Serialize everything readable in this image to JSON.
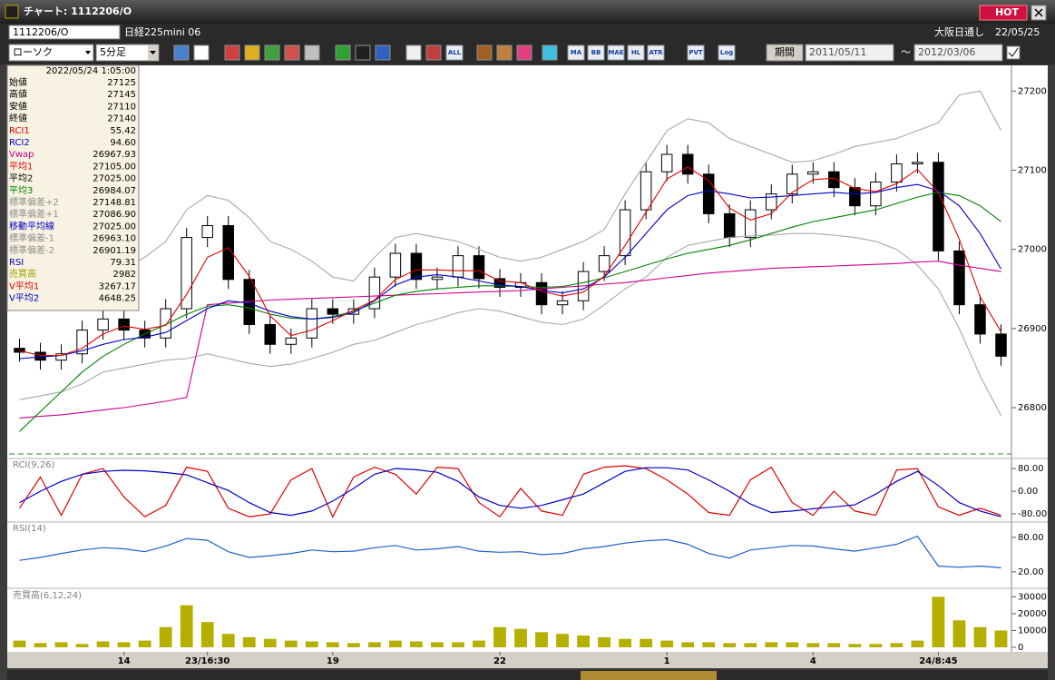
{
  "window": {
    "title": "チャート: 1112206/O",
    "hot": "HOT"
  },
  "header": {
    "symbol": "1112206/O",
    "name": "日経225mini 06",
    "exchange": "大阪日通し",
    "date": "22/05/25"
  },
  "toolbar": {
    "chart_type": "ローソク",
    "interval": "5分足",
    "icons": [
      "ALL",
      "MA",
      "BB",
      "MAE",
      "HL",
      "ATR",
      "PVT",
      "Log"
    ],
    "period_button": "期間",
    "date_from": "2011/05/11",
    "separator": "～",
    "date_to": "2012/03/06"
  },
  "info_panel": {
    "datetime": "2022/05/24 1:05:00",
    "rows": [
      {
        "label": "始値",
        "value": "27125",
        "color": "#000000"
      },
      {
        "label": "高値",
        "value": "27145",
        "color": "#000000"
      },
      {
        "label": "安値",
        "value": "27110",
        "color": "#000000"
      },
      {
        "label": "終値",
        "value": "27140",
        "color": "#000000"
      },
      {
        "label": "RCI1",
        "value": "55.42",
        "color": "#e00000"
      },
      {
        "label": "RCI2",
        "value": "94.60",
        "color": "#0000c8"
      },
      {
        "label": "Vwap",
        "value": "26967.93",
        "color": "#d0008c"
      },
      {
        "label": "平均1",
        "value": "27105.00",
        "color": "#e00000"
      },
      {
        "label": "平均2",
        "value": "27025.00",
        "color": "#000000"
      },
      {
        "label": "平均3",
        "value": "26984.07",
        "color": "#008000"
      },
      {
        "label": "標準偏差+2",
        "value": "27148.81",
        "color": "#909090"
      },
      {
        "label": "標準偏差+1",
        "value": "27086.90",
        "color": "#909090"
      },
      {
        "label": "移動平均線",
        "value": "27025.00",
        "color": "#0000c8"
      },
      {
        "label": "標準偏差-1",
        "value": "26963.10",
        "color": "#909090"
      },
      {
        "label": "標準偏差-2",
        "value": "26901.19",
        "color": "#909090"
      },
      {
        "label": "RSI",
        "value": "79.31",
        "color": "#0000c8"
      },
      {
        "label": "売買高",
        "value": "2982",
        "color": "#a0a000"
      },
      {
        "label": "V平均1",
        "value": "3267.17",
        "color": "#e00000"
      },
      {
        "label": "V平均2",
        "value": "4648.25",
        "color": "#0000c8"
      }
    ]
  },
  "chart_data": [
    {
      "type": "candlestick",
      "open": [
        26875,
        26870,
        26860,
        26868,
        26898,
        26912,
        26898,
        26888,
        26925,
        27015,
        27030,
        26962,
        26905,
        26880,
        26888,
        26925,
        26918,
        26925,
        26965,
        26995,
        26962,
        26965,
        26992,
        26963,
        26952,
        26958,
        26930,
        26935,
        26972,
        26992,
        27050,
        27098,
        27120,
        27095,
        27045,
        27015,
        27050,
        27070,
        27095,
        27098,
        27078,
        27055,
        27085,
        27108,
        27110,
        26998,
        26930,
        26893
      ],
      "high": [
        26887,
        26882,
        26880,
        26910,
        26924,
        26924,
        26910,
        26937,
        27027,
        27042,
        27042,
        26974,
        26917,
        26900,
        26937,
        26937,
        26937,
        26977,
        27007,
        27007,
        26977,
        27004,
        27004,
        26975,
        26970,
        26970,
        26947,
        26984,
        27004,
        27062,
        27110,
        27132,
        27132,
        27107,
        27057,
        27062,
        27082,
        27107,
        27110,
        27110,
        27090,
        27097,
        27120,
        27122,
        27122,
        27010,
        26942,
        26905
      ],
      "low": [
        26858,
        26848,
        26848,
        26856,
        26886,
        26886,
        26876,
        26876,
        26913,
        27003,
        26950,
        26893,
        26868,
        26868,
        26876,
        26906,
        26906,
        26913,
        26953,
        26950,
        26950,
        26953,
        26951,
        26940,
        26940,
        26918,
        26918,
        26923,
        26960,
        26980,
        27038,
        27086,
        27083,
        27033,
        27003,
        27003,
        27038,
        27058,
        27083,
        27066,
        27043,
        27043,
        27073,
        27096,
        26986,
        26918,
        26881,
        26853
      ],
      "close": [
        26870,
        26860,
        26868,
        26898,
        26912,
        26898,
        26888,
        26925,
        27015,
        27030,
        26962,
        26905,
        26880,
        26888,
        26925,
        26918,
        26925,
        26965,
        26995,
        26962,
        26965,
        26992,
        26963,
        26952,
        26958,
        26930,
        26935,
        26972,
        26992,
        27050,
        27098,
        27120,
        27095,
        27045,
        27015,
        27050,
        27070,
        27095,
        27098,
        27078,
        27055,
        27085,
        27108,
        27110,
        26998,
        26930,
        26893,
        26865
      ],
      "overlays": [
        {
          "color": "#a8a8a8",
          "values": [
            26935,
            26945,
            26955,
            26965,
            26972,
            26975,
            26990,
            27010,
            27050,
            27068,
            27062,
            27040,
            27010,
            27000,
            26985,
            26965,
            26960,
            26990,
            27015,
            27020,
            27015,
            27010,
            27000,
            26990,
            26985,
            26990,
            27000,
            27010,
            27025,
            27070,
            27110,
            27150,
            27165,
            27160,
            27140,
            27130,
            27120,
            27110,
            27112,
            27120,
            27130,
            27135,
            27140,
            27150,
            27160,
            27195,
            27200,
            27150
          ]
        },
        {
          "color": "#a8a8a8",
          "values": [
            26810,
            26815,
            26820,
            26830,
            26845,
            26850,
            26855,
            26860,
            26862,
            26868,
            26862,
            26856,
            26852,
            26855,
            26862,
            26870,
            26880,
            26885,
            26895,
            26905,
            26912,
            26920,
            26925,
            26922,
            26915,
            26908,
            26905,
            26912,
            26930,
            26950,
            26965,
            26990,
            27005,
            27010,
            27015,
            27017,
            27018,
            27020,
            27020,
            27018,
            27015,
            27010,
            27000,
            26980,
            26950,
            26900,
            26840,
            26790
          ]
        },
        {
          "color": "#d0008c",
          "values": [
            26787,
            26789,
            26791,
            26794,
            26797,
            26800,
            26804,
            26808,
            26813,
            26930,
            26932,
            26934,
            26936,
            26937,
            26938,
            26939,
            26940,
            26941,
            26942,
            26943,
            26944,
            26945,
            26946,
            26947,
            26948,
            26950,
            26952,
            26954,
            26956,
            26958,
            26961,
            26964,
            26967,
            26970,
            26972,
            26974,
            26976,
            26977,
            26978,
            26979,
            26980,
            26981,
            26982,
            26984,
            26985,
            26980,
            26976,
            26972
          ]
        },
        {
          "color": "#008000",
          "values": [
            26770,
            26795,
            26820,
            26845,
            26865,
            26880,
            26893,
            26905,
            26918,
            26928,
            26930,
            26926,
            26918,
            26913,
            26912,
            26915,
            26922,
            26932,
            26942,
            26947,
            26950,
            26952,
            26954,
            26954,
            26953,
            26952,
            26953,
            26958,
            26964,
            26972,
            26980,
            26988,
            26995,
            27000,
            27005,
            27012,
            27020,
            27028,
            27035,
            27040,
            27045,
            27050,
            27058,
            27066,
            27072,
            27068,
            27055,
            27035
          ]
        },
        {
          "color": "#0000c8",
          "values": [
            26862,
            26864,
            26866,
            26872,
            26880,
            26886,
            26889,
            26895,
            26910,
            26925,
            26935,
            26932,
            26922,
            26915,
            26912,
            26914,
            26920,
            26935,
            26955,
            26965,
            26968,
            26965,
            26960,
            26955,
            26953,
            26948,
            26945,
            26950,
            26965,
            26990,
            27020,
            27050,
            27068,
            27074,
            27070,
            27065,
            27066,
            27068,
            27070,
            27072,
            27070,
            27072,
            27078,
            27082,
            27074,
            27055,
            27020,
            26975
          ]
        },
        {
          "color": "#e00000",
          "values": [
            26872,
            26866,
            26866,
            26875,
            26893,
            26903,
            26899,
            26904,
            26943,
            26990,
            27002,
            26966,
            26916,
            26891,
            26898,
            26910,
            26923,
            26936,
            26962,
            26974,
            26974,
            26973,
            26973,
            26960,
            26958,
            26947,
            26941,
            26946,
            26966,
            27005,
            27047,
            27089,
            27104,
            27087,
            27052,
            27037,
            27045,
            27072,
            27088,
            27090,
            27077,
            27073,
            27083,
            27101,
            27072,
            27013,
            26940,
            26896
          ]
        }
      ],
      "ylim": [
        26753,
        27229
      ],
      "yticks": [
        26800,
        26900,
        27000,
        27100,
        27200
      ]
    },
    {
      "type": "line",
      "title": "RCI(9,26)",
      "series": [
        {
          "color": "#e00000",
          "values": [
            -60,
            50,
            -85,
            60,
            80,
            -20,
            -90,
            -50,
            85,
            70,
            -60,
            -90,
            -80,
            40,
            80,
            -90,
            50,
            85,
            60,
            -10,
            85,
            80,
            -40,
            -90,
            10,
            -70,
            -85,
            60,
            85,
            90,
            80,
            40,
            -10,
            -75,
            -85,
            40,
            85,
            -40,
            -85,
            0,
            -70,
            -85,
            75,
            80,
            -55,
            -85,
            -60,
            -85
          ]
        },
        {
          "color": "#0000c8",
          "values": [
            -40,
            0,
            35,
            60,
            70,
            74,
            72,
            66,
            58,
            30,
            3,
            -40,
            -75,
            -85,
            -70,
            -35,
            10,
            60,
            80,
            76,
            67,
            35,
            -20,
            -50,
            -60,
            -50,
            -30,
            -10,
            30,
            70,
            83,
            83,
            75,
            40,
            0,
            -45,
            -75,
            -70,
            -62,
            -55,
            -48,
            -10,
            35,
            70,
            20,
            -40,
            -70,
            -90
          ]
        }
      ],
      "ylim": [
        -99,
        106
      ],
      "yticks": [
        {
          "value": 80,
          "label": "80.00"
        },
        {
          "value": 0,
          "label": "0.00"
        },
        {
          "value": -80,
          "label": "-80.00"
        }
      ]
    },
    {
      "type": "line",
      "title": "RSI(14)",
      "series": [
        {
          "color": "#1f5fd0",
          "values": [
            40,
            45,
            52,
            58,
            62,
            60,
            55,
            65,
            78,
            75,
            55,
            45,
            48,
            52,
            58,
            55,
            56,
            62,
            66,
            58,
            60,
            64,
            56,
            54,
            55,
            50,
            52,
            60,
            64,
            70,
            74,
            76,
            68,
            52,
            44,
            58,
            62,
            66,
            65,
            60,
            56,
            62,
            68,
            82,
            30,
            28,
            30,
            27
          ]
        }
      ],
      "ylim": [
        -4,
        102
      ],
      "yticks": [
        {
          "value": 80,
          "label": "80.00"
        },
        {
          "value": 20,
          "label": "20.00"
        }
      ]
    },
    {
      "type": "bar",
      "title": "売買高(6,12,24)",
      "color": "#b5b000",
      "categories": [
        null,
        null,
        null,
        null,
        null,
        "14",
        null,
        null,
        null,
        "23/16:30",
        null,
        null,
        null,
        null,
        null,
        "19",
        null,
        null,
        null,
        null,
        null,
        null,
        null,
        "22",
        null,
        null,
        null,
        null,
        null,
        null,
        null,
        "1",
        null,
        null,
        null,
        null,
        null,
        null,
        "4",
        null,
        null,
        null,
        null,
        null,
        "24/8:45",
        null,
        null,
        null
      ],
      "values": [
        4000,
        2500,
        3000,
        2000,
        3500,
        3000,
        4000,
        12000,
        25000,
        15000,
        8000,
        6000,
        5000,
        4000,
        3500,
        3000,
        2500,
        3000,
        4000,
        3500,
        3000,
        3000,
        4000,
        12000,
        11000,
        9000,
        8000,
        7000,
        6000,
        5000,
        5000,
        4000,
        3000,
        3000,
        2500,
        2500,
        3000,
        3000,
        2500,
        2500,
        2000,
        2000,
        2500,
        4000,
        30000,
        16000,
        12000,
        10000
      ],
      "ylim": [
        0,
        33000
      ],
      "yticks": [
        0,
        10000,
        20000,
        30000
      ]
    }
  ]
}
